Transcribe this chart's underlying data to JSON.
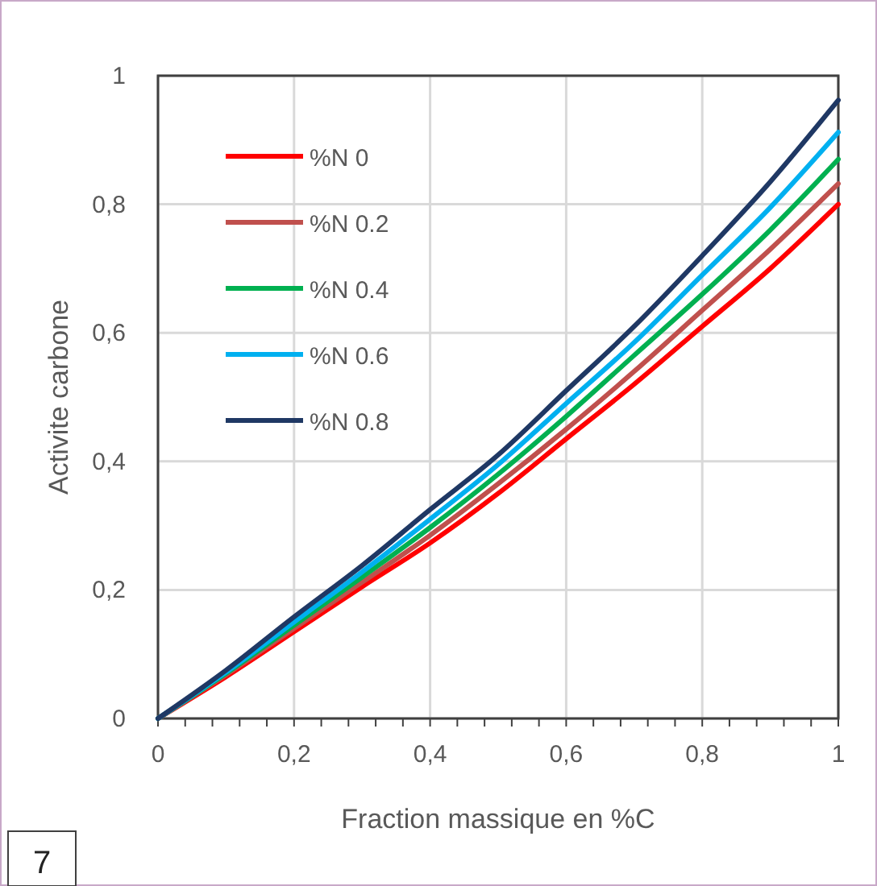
{
  "chart_data": {
    "type": "line",
    "xlabel": "Fraction massique en %C",
    "ylabel": "Activite carbone",
    "x": [
      0,
      0.1,
      0.2,
      0.3,
      0.4,
      0.5,
      0.6,
      0.7,
      0.8,
      0.9,
      1
    ],
    "series": [
      {
        "name": "%N 0",
        "color": "#ff0000",
        "values": [
          0,
          0.065,
          0.135,
          0.205,
          0.273,
          0.35,
          0.435,
          0.52,
          0.61,
          0.7,
          0.8
        ]
      },
      {
        "name": "%N 0.2",
        "color": "#c0504d",
        "values": [
          0,
          0.068,
          0.14,
          0.212,
          0.285,
          0.365,
          0.45,
          0.54,
          0.635,
          0.73,
          0.832
        ]
      },
      {
        "name": "%N 0.4",
        "color": "#00b050",
        "values": [
          0,
          0.07,
          0.145,
          0.22,
          0.297,
          0.38,
          0.47,
          0.565,
          0.66,
          0.76,
          0.87
        ]
      },
      {
        "name": "%N 0.6",
        "color": "#00b0f0",
        "values": [
          0,
          0.072,
          0.15,
          0.228,
          0.31,
          0.395,
          0.49,
          0.585,
          0.69,
          0.795,
          0.912
        ]
      },
      {
        "name": "%N 0.8",
        "color": "#1f3864",
        "values": [
          0,
          0.075,
          0.158,
          0.238,
          0.325,
          0.41,
          0.51,
          0.61,
          0.72,
          0.835,
          0.962
        ]
      }
    ],
    "xlim": [
      0,
      1
    ],
    "ylim": [
      0,
      1
    ],
    "xticks": [
      {
        "value": 0,
        "label": "0"
      },
      {
        "value": 0.04,
        "label": null
      },
      {
        "value": 0.08,
        "label": null
      },
      {
        "value": 0.12,
        "label": null
      },
      {
        "value": 0.16,
        "label": null
      },
      {
        "value": 0.2,
        "label": "0,2"
      },
      {
        "value": 0.24,
        "label": null
      },
      {
        "value": 0.28,
        "label": null
      },
      {
        "value": 0.32,
        "label": null
      },
      {
        "value": 0.36,
        "label": null
      },
      {
        "value": 0.4,
        "label": "0,4"
      },
      {
        "value": 0.44,
        "label": null
      },
      {
        "value": 0.48,
        "label": null
      },
      {
        "value": 0.52,
        "label": null
      },
      {
        "value": 0.56,
        "label": null
      },
      {
        "value": 0.6,
        "label": "0,6"
      },
      {
        "value": 0.64,
        "label": null
      },
      {
        "value": 0.68,
        "label": null
      },
      {
        "value": 0.72,
        "label": null
      },
      {
        "value": 0.76,
        "label": null
      },
      {
        "value": 0.8,
        "label": "0,8"
      },
      {
        "value": 0.84,
        "label": null
      },
      {
        "value": 0.88,
        "label": null
      },
      {
        "value": 0.92,
        "label": null
      },
      {
        "value": 0.96,
        "label": null
      },
      {
        "value": 1,
        "label": "1"
      }
    ],
    "yticks": [
      0,
      {
        "value": 0.2,
        "label": "0,2"
      },
      {
        "value": 0.4,
        "label": "0,4"
      },
      {
        "value": 0.6,
        "label": "0,6"
      },
      {
        "value": 0.8,
        "label": "0,8"
      },
      1
    ],
    "grid": true,
    "legend": "top left",
    "marker": "none",
    "line_style": "solid",
    "annotations": [
      "7"
    ]
  }
}
